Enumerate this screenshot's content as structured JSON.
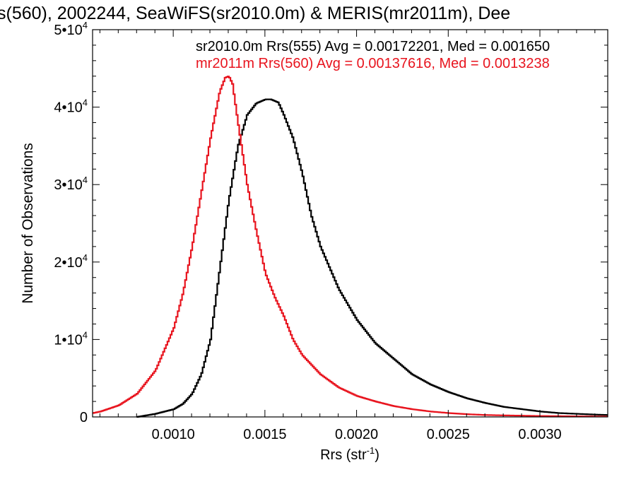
{
  "chart_data": {
    "type": "line",
    "title": "s(560), 2002244, SeaWiFS(sr2010.0m) & MERIS(mr2011m), Dee",
    "xlabel": "Rrs (str",
    "xlabel_sup": "-1",
    "xlabel_end": ")",
    "ylabel": "Number of Observations",
    "xlim": [
      0.00056,
      0.00337
    ],
    "ylim": [
      0,
      50000
    ],
    "xticks": [
      {
        "value": 0.001,
        "label": "0.0010"
      },
      {
        "value": 0.0015,
        "label": "0.0015"
      },
      {
        "value": 0.002,
        "label": "0.0020"
      },
      {
        "value": 0.0025,
        "label": "0.0025"
      },
      {
        "value": 0.003,
        "label": "0.0030"
      }
    ],
    "yticks": [
      {
        "value": 0,
        "mant": "0",
        "exp": ""
      },
      {
        "value": 10000,
        "mant": "1•10",
        "exp": "4"
      },
      {
        "value": 20000,
        "mant": "2•10",
        "exp": "4"
      },
      {
        "value": 30000,
        "mant": "3•10",
        "exp": "4"
      },
      {
        "value": 40000,
        "mant": "4•10",
        "exp": "4"
      },
      {
        "value": 50000,
        "mant": "5•10",
        "exp": "4"
      }
    ],
    "grid": false,
    "legend_position": "top-right",
    "series": [
      {
        "name": "sr2010.0m Rrs(555) Avg = 0.00172201, Med = 0.001650",
        "color": "#000000",
        "x": [
          0.0008,
          0.0009,
          0.001,
          0.00105,
          0.0011,
          0.00115,
          0.0012,
          0.00125,
          0.0013,
          0.00135,
          0.0014,
          0.00145,
          0.0015,
          0.00153,
          0.00155,
          0.00157,
          0.0016,
          0.00165,
          0.0017,
          0.00175,
          0.0018,
          0.0019,
          0.002,
          0.0021,
          0.0022,
          0.0023,
          0.0024,
          0.0025,
          0.0026,
          0.0027,
          0.0028,
          0.0029,
          0.003,
          0.0031,
          0.0032,
          0.0033,
          0.00337
        ],
        "y": [
          0,
          400,
          1000,
          1700,
          3000,
          5500,
          10000,
          19000,
          28000,
          35000,
          39000,
          40500,
          41000,
          41000,
          40800,
          40600,
          39000,
          36000,
          31500,
          26000,
          22000,
          16500,
          12500,
          9500,
          7500,
          5500,
          4200,
          3200,
          2400,
          1800,
          1300,
          1000,
          700,
          500,
          400,
          300,
          250
        ]
      },
      {
        "name": "mr2011m Rrs(560) Avg = 0.00137616, Med = 0.0013238",
        "color": "#e8141e",
        "x": [
          0.00056,
          0.0006,
          0.0007,
          0.0008,
          0.0009,
          0.001,
          0.00105,
          0.0011,
          0.00115,
          0.0012,
          0.00125,
          0.00128,
          0.0013,
          0.00132,
          0.00135,
          0.0014,
          0.00145,
          0.0015,
          0.00155,
          0.0016,
          0.00165,
          0.0017,
          0.0018,
          0.0019,
          0.002,
          0.0021,
          0.0022,
          0.0023,
          0.0024,
          0.0025,
          0.0026,
          0.0027,
          0.0028,
          0.003,
          0.0032,
          0.00337
        ],
        "y": [
          500,
          700,
          1500,
          3000,
          6000,
          11500,
          16000,
          22000,
          29000,
          36000,
          42000,
          43800,
          44000,
          43000,
          38000,
          30000,
          24000,
          18500,
          15500,
          13000,
          10000,
          8000,
          5500,
          3800,
          2700,
          2000,
          1400,
          1000,
          700,
          500,
          350,
          250,
          200,
          120,
          80,
          50
        ]
      }
    ]
  }
}
